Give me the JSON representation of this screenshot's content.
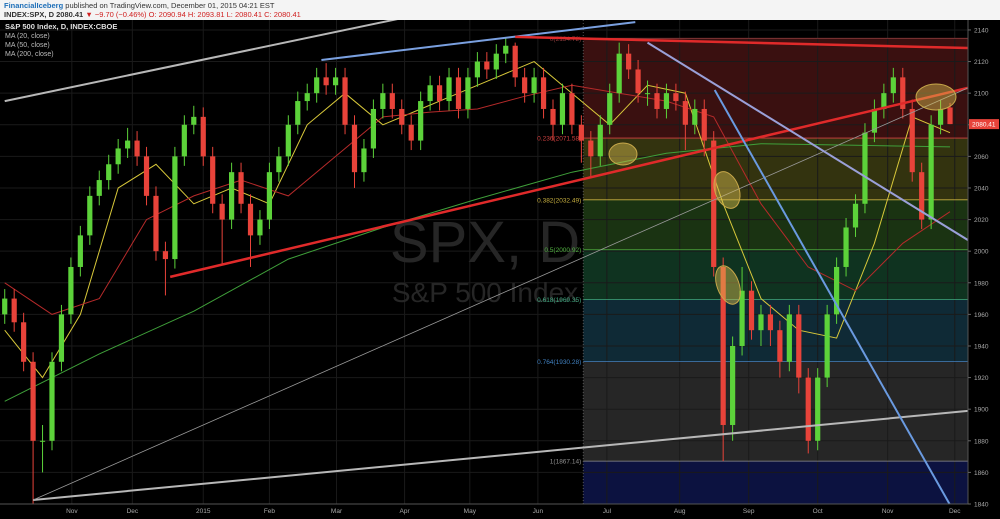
{
  "header": {
    "author": "FinancialIceberg",
    "published": "published on TradingView.com, December 01, 2015 04:21 EST",
    "symbol": "INDEX:SPX, D",
    "last": "2080.41",
    "change": "▼ −9.70 (−0.46%)",
    "ohlc": "O: 2090.94 H: 2093.81 L: 2080.41 C: 2080.41"
  },
  "chart_data": {
    "type": "candlestick",
    "title": "S&P 500 Index, D, INDEX:CBOE",
    "watermark_symbol": "SPX, D",
    "watermark_name": "S&P 500 Index",
    "up_color": "#5cd23a",
    "down_color": "#e8433a",
    "x": [
      0,
      1,
      2,
      3,
      4,
      5,
      6,
      7,
      8,
      9,
      10,
      11,
      12,
      13,
      14,
      15,
      16,
      17,
      18,
      19,
      20,
      21,
      22,
      23,
      24,
      25,
      26,
      27,
      28,
      29,
      30,
      31,
      32,
      33,
      34,
      35,
      36,
      37,
      38,
      39,
      40,
      41,
      42,
      43,
      44,
      45,
      46,
      47,
      48,
      49,
      50,
      51,
      52,
      53,
      54,
      55,
      56,
      57,
      58,
      59,
      60,
      61,
      62,
      63,
      64,
      65,
      66,
      67,
      68,
      69,
      70,
      71,
      72,
      73,
      74,
      75,
      76,
      77,
      78,
      79,
      80,
      81,
      82,
      83,
      84,
      85,
      86,
      87,
      88,
      89,
      90,
      91,
      92,
      93,
      94,
      95,
      96,
      97,
      98,
      99,
      100
    ],
    "open": [
      1960,
      1970,
      1955,
      1930,
      1880,
      1880,
      1930,
      1960,
      1990,
      2010,
      2035,
      2045,
      2055,
      2065,
      2070,
      2060,
      2035,
      2000,
      1995,
      2060,
      2080,
      2085,
      2060,
      2030,
      2020,
      2050,
      2030,
      2010,
      2020,
      2050,
      2060,
      2080,
      2095,
      2100,
      2110,
      2105,
      2110,
      2080,
      2050,
      2065,
      2090,
      2100,
      2090,
      2080,
      2070,
      2095,
      2105,
      2095,
      2110,
      2090,
      2110,
      2120,
      2115,
      2125,
      2130,
      2110,
      2100,
      2110,
      2090,
      2080,
      2100,
      2080,
      2070,
      2060,
      2080,
      2100,
      2125,
      2115,
      2100,
      2100,
      2090,
      2100,
      2095,
      2080,
      2090,
      2070,
      1990,
      1890,
      1940,
      1975,
      1950,
      1960,
      1950,
      1930,
      1960,
      1920,
      1880,
      1920,
      1960,
      1990,
      2015,
      2030,
      2075,
      2090,
      2100,
      2110,
      2090,
      2050,
      2020,
      2080,
      2090.94
    ],
    "high": [
      1976,
      1976,
      1961,
      1936,
      1890,
      1936,
      1966,
      1996,
      2016,
      2041,
      2051,
      2061,
      2071,
      2078,
      2076,
      2066,
      2041,
      2006,
      2066,
      2086,
      2092,
      2091,
      2066,
      2036,
      2056,
      2056,
      2036,
      2026,
      2056,
      2066,
      2086,
      2101,
      2106,
      2116,
      2119,
      2116,
      2116,
      2086,
      2071,
      2096,
      2106,
      2106,
      2096,
      2086,
      2101,
      2111,
      2111,
      2116,
      2116,
      2116,
      2126,
      2126,
      2131,
      2134.72,
      2132,
      2116,
      2116,
      2116,
      2096,
      2106,
      2106,
      2086,
      2076,
      2086,
      2106,
      2132,
      2131,
      2121,
      2108,
      2106,
      2106,
      2106,
      2101,
      2096,
      2096,
      2076,
      1996,
      1946,
      1990,
      1981,
      1966,
      1966,
      1956,
      1966,
      1966,
      1926,
      1926,
      1966,
      1996,
      2021,
      2036,
      2081,
      2096,
      2106,
      2116,
      2116,
      2096,
      2056,
      2086,
      2096,
      2093.81
    ],
    "low": [
      1954,
      1949,
      1924,
      1820,
      1860,
      1874,
      1924,
      1954,
      1984,
      2004,
      2029,
      2039,
      2049,
      2059,
      2054,
      2029,
      1994,
      1972,
      1989,
      2054,
      2074,
      2054,
      2024,
      1992,
      2014,
      2024,
      1990,
      2004,
      2014,
      2044,
      2054,
      2074,
      2089,
      2094,
      2099,
      2099,
      2074,
      2040,
      2044,
      2059,
      2084,
      2084,
      2074,
      2064,
      2064,
      2089,
      2089,
      2089,
      2084,
      2084,
      2104,
      2109,
      2109,
      2119,
      2104,
      2094,
      2094,
      2084,
      2070,
      2074,
      2074,
      2056,
      2046,
      2054,
      2074,
      2094,
      2109,
      2094,
      2092,
      2084,
      2084,
      2089,
      2064,
      2074,
      2060,
      1984,
      1867.14,
      1880,
      1934,
      1944,
      1940,
      1940,
      1920,
      1924,
      1910,
      1872,
      1874,
      1914,
      1954,
      1984,
      2009,
      2024,
      2069,
      2084,
      2094,
      2084,
      2044,
      2014,
      2014,
      2074,
      2080.41
    ],
    "close": [
      1970,
      1955,
      1930,
      1880,
      1880,
      1930,
      1960,
      1990,
      2010,
      2035,
      2045,
      2055,
      2065,
      2070,
      2060,
      2035,
      2000,
      1995,
      2060,
      2080,
      2085,
      2060,
      2030,
      2020,
      2050,
      2030,
      2010,
      2020,
      2050,
      2060,
      2080,
      2095,
      2100,
      2110,
      2105,
      2110,
      2080,
      2050,
      2065,
      2090,
      2100,
      2090,
      2080,
      2070,
      2095,
      2105,
      2095,
      2110,
      2090,
      2110,
      2120,
      2115,
      2125,
      2130,
      2110,
      2100,
      2110,
      2090,
      2080,
      2100,
      2080,
      2070,
      2060,
      2080,
      2100,
      2125,
      2115,
      2100,
      2100,
      2090,
      2100,
      2095,
      2080,
      2090,
      2070,
      1990,
      1890,
      1940,
      1975,
      1950,
      1960,
      1950,
      1930,
      1960,
      1920,
      1880,
      1920,
      1960,
      1990,
      2015,
      2030,
      2075,
      2090,
      2100,
      2110,
      2090,
      2050,
      2020,
      2080,
      2090,
      2080.41
    ],
    "xlim": [
      -0.5,
      101.9
    ],
    "xticks": [
      {
        "value": 7.1,
        "label": "Nov"
      },
      {
        "value": 13.5,
        "label": "Dec"
      },
      {
        "value": 21,
        "label": "2015"
      },
      {
        "value": 28,
        "label": "Feb"
      },
      {
        "value": 35.1,
        "label": "Mar"
      },
      {
        "value": 42.3,
        "label": "Apr"
      },
      {
        "value": 49.2,
        "label": "May"
      },
      {
        "value": 56.4,
        "label": "Jun"
      },
      {
        "value": 63.7,
        "label": "Jul"
      },
      {
        "value": 71.4,
        "label": "Aug"
      },
      {
        "value": 78.7,
        "label": "Sep"
      },
      {
        "value": 86,
        "label": "Oct"
      },
      {
        "value": 93.4,
        "label": "Nov"
      },
      {
        "value": 100.5,
        "label": "Dec"
      }
    ],
    "ylim": [
      1840,
      2146.3
    ],
    "yticks": [
      1840,
      1860,
      1880,
      1900,
      1920,
      1940,
      1960,
      1980,
      2000,
      2020,
      2040,
      2060,
      2080,
      2100,
      2120,
      2140
    ],
    "grid": true,
    "moving_averages": [
      {
        "name": "MA (20, close)",
        "color": "#d8c83a",
        "x": [
          0,
          4,
          8,
          12,
          16,
          20,
          24,
          28,
          32,
          36,
          40,
          44,
          48,
          52,
          56,
          60,
          64,
          68,
          72,
          76,
          80,
          84,
          88,
          92,
          96,
          100
        ],
        "values": [
          1950,
          1920,
          1960,
          2040,
          2055,
          2030,
          2040,
          2030,
          2080,
          2100,
          2080,
          2090,
          2100,
          2110,
          2120,
          2100,
          2080,
          2105,
          2100,
          2030,
          1970,
          1950,
          1945,
          2005,
          2085,
          2075
        ]
      },
      {
        "name": "MA (50, close)",
        "color": "#b52a2a",
        "x": [
          0,
          5,
          10,
          15,
          20,
          25,
          30,
          35,
          40,
          45,
          50,
          55,
          60,
          65,
          70,
          75,
          80,
          85,
          90,
          95,
          100
        ],
        "values": [
          1980,
          1960,
          1970,
          2020,
          2035,
          2045,
          2035,
          2060,
          2085,
          2088,
          2090,
          2098,
          2105,
          2100,
          2095,
          2085,
          2030,
          1990,
          1975,
          2005,
          2025
        ]
      },
      {
        "name": "MA (200, close)",
        "color": "#3fa03a",
        "x": [
          0,
          10,
          20,
          30,
          40,
          50,
          60,
          70,
          80,
          90,
          100
        ],
        "values": [
          1905,
          1935,
          1962,
          1995,
          2015,
          2033,
          2050,
          2062,
          2068,
          2067,
          2066
        ]
      }
    ],
    "fib": {
      "x_start": 61.2,
      "levels": [
        {
          "value": 2134.72,
          "label": "0(2134.72)",
          "color": "#8a3a3a"
        },
        {
          "value": 2071.58,
          "label": "0.236(2071.58)",
          "color": "#d04040"
        },
        {
          "value": 2032.49,
          "label": "0.382(2032.49)",
          "color": "#c8b040"
        },
        {
          "value": 2000.92,
          "label": "0.5(2000.92)",
          "color": "#50b040"
        },
        {
          "value": 1969.35,
          "label": "0.618(1969.35)",
          "color": "#40a880"
        },
        {
          "value": 1930.28,
          "label": "0.764(1930.28)",
          "color": "#4080c0"
        },
        {
          "value": 1867.14,
          "label": "1(1867.14)",
          "color": "#909090"
        }
      ],
      "band_colors": [
        "#3a1010",
        "#33330f",
        "#1a3312",
        "#0f3320",
        "#0f2a36",
        "#262626",
        "#0c1240"
      ]
    },
    "trendlines": [
      {
        "color": "#b8b8b8",
        "width": 2,
        "x": [
          0,
          44
        ],
        "values": [
          2095,
          2150
        ]
      },
      {
        "color": "#7aa0e0",
        "width": 2,
        "x": [
          33.5,
          66.7
        ],
        "values": [
          2121,
          2145
        ]
      },
      {
        "color": "#e02a2a",
        "width": 2.5,
        "x": [
          54,
          101.9
        ],
        "values": [
          2135.6,
          2128.6
        ]
      },
      {
        "color": "#e02a2a",
        "width": 2.5,
        "x": [
          17.5,
          101.9
        ],
        "values": [
          1983.7,
          2103.3
        ]
      },
      {
        "color": "#b8b8b8",
        "width": 2,
        "x": [
          3,
          101.9
        ],
        "values": [
          1842.5,
          1898.9
        ]
      },
      {
        "color": "#9a9a9a",
        "width": 0.8,
        "x": [
          3,
          101.9
        ],
        "values": [
          1842.5,
          2103.3
        ]
      },
      {
        "color": "#9aa0d8",
        "width": 2,
        "x": [
          68,
          101.9
        ],
        "values": [
          2132,
          2007
        ]
      },
      {
        "color": "#6a9ae0",
        "width": 2,
        "x": [
          75.1,
          100
        ],
        "values": [
          2102,
          1839.5
        ]
      }
    ]
  }
}
